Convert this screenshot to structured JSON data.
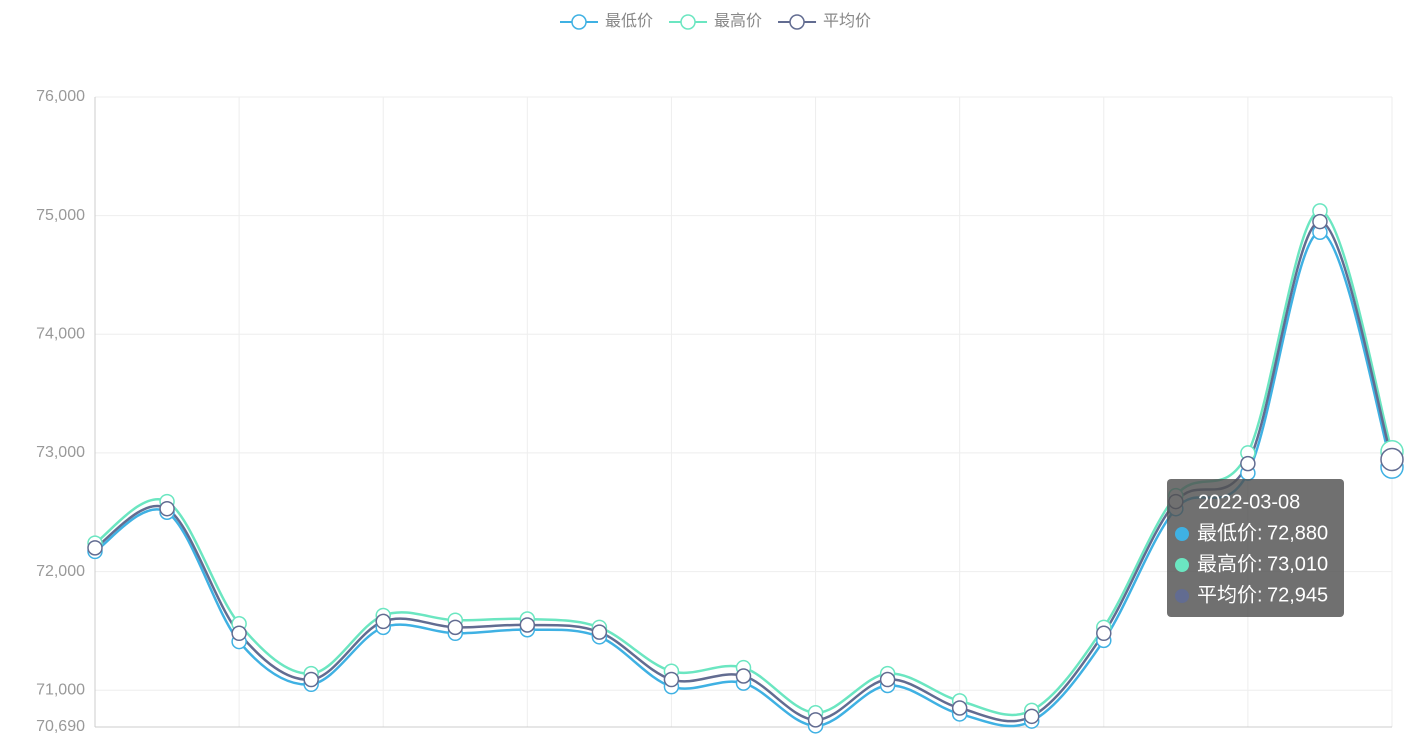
{
  "chart_data": {
    "type": "line",
    "smooth": true,
    "categories": [
      null,
      null,
      null,
      null,
      null,
      null,
      null,
      null,
      null,
      null,
      null,
      null,
      null,
      null,
      null,
      null,
      null,
      null,
      "2022-03-08"
    ],
    "series": [
      {
        "name": "最低价",
        "color": "#3fb1e3",
        "values": [
          72170,
          72500,
          71410,
          71050,
          71530,
          71480,
          71510,
          71450,
          71030,
          71060,
          70700,
          71040,
          70800,
          70740,
          71420,
          72530,
          72830,
          74860,
          72880
        ],
        "value_labels": [
          null,
          null,
          null,
          null,
          null,
          null,
          null,
          null,
          null,
          null,
          null,
          null,
          null,
          null,
          null,
          null,
          null,
          null,
          "72,880"
        ]
      },
      {
        "name": "最高价",
        "color": "#6be6c1",
        "values": [
          72240,
          72590,
          71560,
          71140,
          71630,
          71590,
          71600,
          71530,
          71160,
          71190,
          70810,
          71140,
          70910,
          70830,
          71530,
          72640,
          73000,
          75040,
          73010
        ],
        "value_labels": [
          null,
          null,
          null,
          null,
          null,
          null,
          null,
          null,
          null,
          null,
          null,
          null,
          null,
          null,
          null,
          null,
          null,
          null,
          "73,010"
        ]
      },
      {
        "name": "平均价",
        "color": "#626c91",
        "values": [
          72200,
          72530,
          71480,
          71090,
          71580,
          71530,
          71550,
          71490,
          71090,
          71120,
          70750,
          71090,
          70850,
          70780,
          71480,
          72590,
          72910,
          74950,
          72945
        ],
        "value_labels": [
          null,
          null,
          null,
          null,
          null,
          null,
          null,
          null,
          null,
          null,
          null,
          null,
          null,
          null,
          null,
          null,
          null,
          null,
          "72,945"
        ]
      }
    ],
    "ylim": [
      70690,
      76000
    ],
    "yticks": [
      {
        "value": 70690,
        "label": "70,690"
      },
      {
        "value": 71000,
        "label": "71,000"
      },
      {
        "value": 72000,
        "label": "72,000"
      },
      {
        "value": 73000,
        "label": "73,000"
      },
      {
        "value": 74000,
        "label": "74,000"
      },
      {
        "value": 75000,
        "label": "75,000"
      },
      {
        "value": 76000,
        "label": "76,000"
      }
    ],
    "grid": true,
    "legend": "top"
  }
}
